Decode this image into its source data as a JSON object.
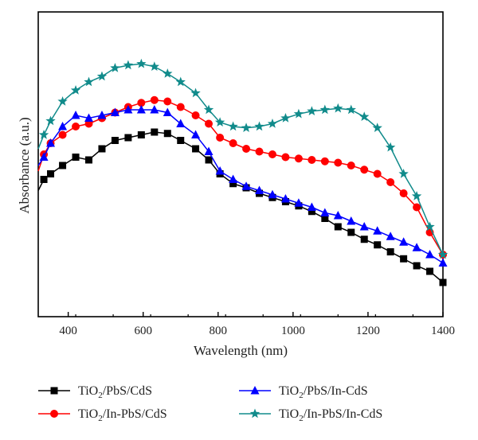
{
  "chart_data": {
    "type": "line",
    "title": "",
    "xlabel": "Wavelength (nm)",
    "ylabel": "Absorbance (a.u.)",
    "xlim": [
      320,
      1400
    ],
    "ylim": [
      0,
      1
    ],
    "xticks": [
      400,
      600,
      800,
      1000,
      1200,
      1400
    ],
    "y_tick_labels_shown": false,
    "grid": false,
    "legend_position": "bottom",
    "series": [
      {
        "name": "TiO2/PbS/CdS",
        "name_base": "TiO",
        "name_sub": "2",
        "name_rest": "/PbS/CdS",
        "color": "#000000",
        "marker": "square",
        "x": [
          320,
          335,
          353,
          385,
          420,
          455,
          490,
          525,
          560,
          595,
          630,
          665,
          700,
          740,
          775,
          805,
          840,
          875,
          910,
          945,
          980,
          1015,
          1050,
          1085,
          1120,
          1155,
          1190,
          1225,
          1260,
          1295,
          1330,
          1365,
          1400
        ],
        "y": [
          0.43,
          0.47,
          0.49,
          0.52,
          0.55,
          0.54,
          0.58,
          0.61,
          0.62,
          0.63,
          0.64,
          0.635,
          0.61,
          0.58,
          0.54,
          0.49,
          0.455,
          0.44,
          0.42,
          0.405,
          0.39,
          0.375,
          0.355,
          0.33,
          0.3,
          0.28,
          0.255,
          0.235,
          0.21,
          0.185,
          0.16,
          0.14,
          0.1
        ]
      },
      {
        "name": "TiO2/In-PbS/CdS",
        "name_base": "TiO",
        "name_sub": "2",
        "name_rest": "/In-PbS/CdS",
        "color": "#ff0000",
        "marker": "circle",
        "x": [
          320,
          335,
          353,
          385,
          420,
          455,
          490,
          525,
          560,
          595,
          630,
          665,
          700,
          740,
          775,
          805,
          840,
          875,
          910,
          945,
          980,
          1015,
          1050,
          1085,
          1120,
          1155,
          1190,
          1225,
          1260,
          1295,
          1330,
          1365,
          1400
        ],
        "y": [
          0.5,
          0.56,
          0.6,
          0.63,
          0.66,
          0.67,
          0.69,
          0.71,
          0.73,
          0.745,
          0.755,
          0.75,
          0.73,
          0.7,
          0.67,
          0.62,
          0.6,
          0.58,
          0.57,
          0.56,
          0.55,
          0.545,
          0.54,
          0.535,
          0.53,
          0.52,
          0.505,
          0.49,
          0.46,
          0.42,
          0.37,
          0.28,
          0.2
        ]
      },
      {
        "name": "TiO2/PbS/In-CdS",
        "name_base": "TiO",
        "name_sub": "2",
        "name_rest": "/PbS/In-CdS",
        "color": "#0000ff",
        "marker": "triangle",
        "x": [
          320,
          335,
          353,
          385,
          420,
          455,
          490,
          525,
          560,
          595,
          630,
          665,
          700,
          740,
          775,
          805,
          840,
          875,
          910,
          945,
          980,
          1015,
          1050,
          1085,
          1120,
          1155,
          1190,
          1225,
          1260,
          1295,
          1330,
          1365,
          1400
        ],
        "y": [
          0.52,
          0.55,
          0.6,
          0.66,
          0.7,
          0.69,
          0.7,
          0.71,
          0.72,
          0.72,
          0.72,
          0.71,
          0.67,
          0.63,
          0.57,
          0.5,
          0.47,
          0.445,
          0.43,
          0.415,
          0.4,
          0.385,
          0.37,
          0.35,
          0.34,
          0.32,
          0.3,
          0.285,
          0.265,
          0.245,
          0.225,
          0.2,
          0.17
        ]
      },
      {
        "name": "TiO2/In-PbS/In-CdS",
        "name_base": "TiO",
        "name_sub": "2",
        "name_rest": "/In-PbS/In-CdS",
        "color": "#118b8b",
        "marker": "star",
        "x": [
          320,
          335,
          353,
          385,
          420,
          455,
          490,
          525,
          560,
          595,
          630,
          665,
          700,
          740,
          775,
          805,
          840,
          875,
          910,
          945,
          980,
          1015,
          1050,
          1085,
          1120,
          1155,
          1190,
          1225,
          1260,
          1295,
          1330,
          1365,
          1400
        ],
        "y": [
          0.58,
          0.63,
          0.68,
          0.75,
          0.79,
          0.82,
          0.84,
          0.87,
          0.88,
          0.885,
          0.875,
          0.85,
          0.82,
          0.78,
          0.72,
          0.675,
          0.66,
          0.655,
          0.66,
          0.67,
          0.69,
          0.705,
          0.715,
          0.72,
          0.725,
          0.72,
          0.695,
          0.655,
          0.585,
          0.49,
          0.41,
          0.3,
          0.2
        ]
      }
    ]
  }
}
